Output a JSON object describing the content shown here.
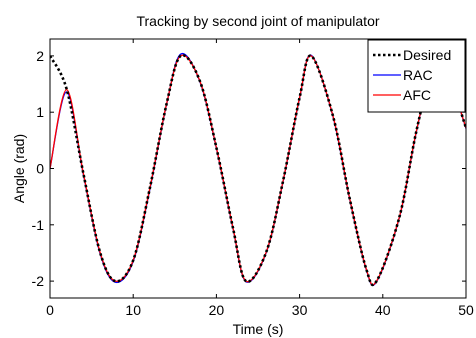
{
  "chart_data": {
    "type": "line",
    "title": "Tracking by second joint of manipulator",
    "xlabel": "Time (s)",
    "ylabel": "Angle (rad)",
    "xlim": [
      0,
      50
    ],
    "ylim": [
      -2.3,
      2.3
    ],
    "xticks": [
      0,
      10,
      20,
      30,
      40,
      50
    ],
    "yticks": [
      -2,
      -1,
      0,
      1,
      2
    ],
    "xtick_labels": [
      "0",
      "10",
      "20",
      "30",
      "40",
      "50"
    ],
    "ytick_labels": [
      "-2",
      "-1",
      "0",
      "1",
      "2"
    ],
    "grid": false,
    "legend_position": "top-right",
    "x": [
      0,
      2,
      4,
      6,
      7.85,
      10,
      12,
      14,
      15.7,
      18,
      20,
      22,
      23.55,
      26,
      28,
      30,
      31.4,
      34,
      36,
      38,
      39.25,
      42,
      44,
      46,
      47.1,
      50
    ],
    "series": [
      {
        "name": "Desired",
        "color": "#000000",
        "style": "dotted",
        "values": [
          2.0,
          1.41,
          -0.08,
          -1.48,
          -2.0,
          -1.63,
          -0.35,
          1.14,
          2.0,
          1.56,
          0.37,
          -1.06,
          -2.0,
          -1.48,
          -0.23,
          1.26,
          2.0,
          0.94,
          -0.52,
          -1.78,
          -2.0,
          -0.86,
          0.64,
          1.84,
          2.0,
          0.72
        ]
      },
      {
        "name": "RAC",
        "color": "#0000ff",
        "style": "solid",
        "values": [
          0.0,
          1.36,
          -0.1,
          -1.5,
          -2.02,
          -1.65,
          -0.37,
          1.13,
          2.03,
          1.55,
          0.36,
          -1.07,
          -2.01,
          -1.49,
          -0.24,
          1.25,
          2.01,
          0.93,
          -0.53,
          -1.79,
          -2.01,
          -0.87,
          0.63,
          1.83,
          2.01,
          0.71
        ]
      },
      {
        "name": "AFC",
        "color": "#ff0000",
        "style": "solid",
        "values": [
          0.0,
          1.4,
          -0.08,
          -1.48,
          -2.0,
          -1.63,
          -0.35,
          1.14,
          2.0,
          1.56,
          0.37,
          -1.06,
          -2.0,
          -1.48,
          -0.23,
          1.26,
          2.0,
          0.94,
          -0.52,
          -1.78,
          -2.0,
          -0.86,
          0.64,
          1.84,
          2.0,
          0.72
        ]
      }
    ]
  }
}
